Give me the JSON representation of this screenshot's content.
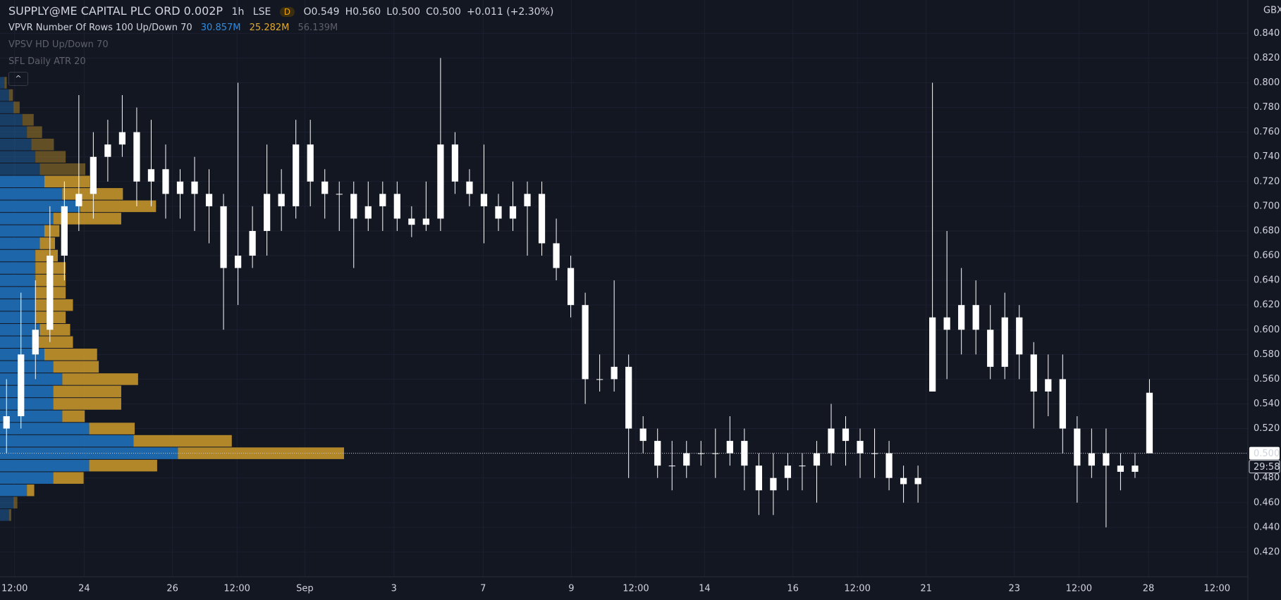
{
  "chart_data": {
    "type": "candlestick",
    "title": "SUPPLY@ME CAPITAL PLC ORD 0.002P",
    "interval": "1h",
    "exchange": "LSE",
    "badge": "D",
    "ohlc_text": [
      "O0.549",
      "H0.560",
      "L0.500",
      "C0.500",
      "+0.011 (+2.30%)"
    ],
    "indicators": [
      {
        "name": "VPVR Number Of Rows 100 Up/Down 70",
        "values": [
          "30.857M",
          "25.282M",
          "56.139M"
        ]
      },
      {
        "name": "VPSV HD Up/Down 70"
      },
      {
        "name": "SFL Daily ATR 20"
      }
    ],
    "currency": "GBX",
    "current_price": {
      "value": 0.5,
      "label": "0.500"
    },
    "countdown": "29:58",
    "candle_color": "#ffffff",
    "x": [
      0,
      1,
      2,
      3,
      4,
      5,
      6,
      7,
      8,
      9,
      10,
      11,
      12,
      13,
      14,
      15,
      16,
      17,
      18,
      19,
      20,
      21,
      22,
      23,
      24,
      25,
      26,
      27,
      28,
      29,
      30,
      31,
      32,
      33,
      34,
      35,
      36,
      37,
      38,
      39,
      40,
      41,
      42,
      43,
      44,
      45,
      46,
      47,
      48,
      49,
      50,
      51,
      52,
      53,
      54,
      55,
      56,
      57,
      58,
      59,
      60,
      61,
      62,
      63,
      64,
      65,
      66,
      67,
      68,
      69,
      70,
      71,
      72,
      73,
      74,
      75,
      76,
      77,
      78,
      79
    ],
    "candles": [
      [
        0.52,
        0.56,
        0.5,
        0.53
      ],
      [
        0.53,
        0.63,
        0.52,
        0.58
      ],
      [
        0.58,
        0.64,
        0.56,
        0.6
      ],
      [
        0.6,
        0.7,
        0.59,
        0.66
      ],
      [
        0.66,
        0.72,
        0.64,
        0.7
      ],
      [
        0.7,
        0.79,
        0.68,
        0.71
      ],
      [
        0.71,
        0.76,
        0.69,
        0.74
      ],
      [
        0.74,
        0.77,
        0.72,
        0.75
      ],
      [
        0.75,
        0.79,
        0.74,
        0.76
      ],
      [
        0.76,
        0.78,
        0.7,
        0.72
      ],
      [
        0.72,
        0.77,
        0.7,
        0.73
      ],
      [
        0.73,
        0.75,
        0.69,
        0.71
      ],
      [
        0.71,
        0.73,
        0.69,
        0.72
      ],
      [
        0.72,
        0.74,
        0.68,
        0.71
      ],
      [
        0.71,
        0.73,
        0.67,
        0.7
      ],
      [
        0.7,
        0.71,
        0.6,
        0.65
      ],
      [
        0.65,
        0.8,
        0.62,
        0.66
      ],
      [
        0.66,
        0.7,
        0.65,
        0.68
      ],
      [
        0.68,
        0.75,
        0.66,
        0.71
      ],
      [
        0.71,
        0.73,
        0.68,
        0.7
      ],
      [
        0.7,
        0.77,
        0.69,
        0.75
      ],
      [
        0.75,
        0.77,
        0.7,
        0.72
      ],
      [
        0.72,
        0.73,
        0.69,
        0.71
      ],
      [
        0.71,
        0.72,
        0.68,
        0.71
      ],
      [
        0.71,
        0.72,
        0.65,
        0.69
      ],
      [
        0.69,
        0.72,
        0.68,
        0.7
      ],
      [
        0.7,
        0.72,
        0.68,
        0.71
      ],
      [
        0.71,
        0.72,
        0.68,
        0.69
      ],
      [
        0.69,
        0.7,
        0.675,
        0.685
      ],
      [
        0.685,
        0.72,
        0.68,
        0.69
      ],
      [
        0.69,
        0.82,
        0.68,
        0.75
      ],
      [
        0.75,
        0.76,
        0.71,
        0.72
      ],
      [
        0.72,
        0.73,
        0.7,
        0.71
      ],
      [
        0.71,
        0.75,
        0.67,
        0.7
      ],
      [
        0.7,
        0.71,
        0.68,
        0.69
      ],
      [
        0.69,
        0.72,
        0.68,
        0.7
      ],
      [
        0.7,
        0.72,
        0.66,
        0.71
      ],
      [
        0.71,
        0.72,
        0.66,
        0.67
      ],
      [
        0.67,
        0.69,
        0.64,
        0.65
      ],
      [
        0.65,
        0.66,
        0.61,
        0.62
      ],
      [
        0.62,
        0.63,
        0.54,
        0.56
      ],
      [
        0.56,
        0.58,
        0.55,
        0.56
      ],
      [
        0.56,
        0.64,
        0.55,
        0.57
      ],
      [
        0.57,
        0.58,
        0.48,
        0.52
      ],
      [
        0.52,
        0.53,
        0.5,
        0.51
      ],
      [
        0.51,
        0.52,
        0.48,
        0.49
      ],
      [
        0.49,
        0.51,
        0.47,
        0.49
      ],
      [
        0.49,
        0.51,
        0.48,
        0.5
      ],
      [
        0.5,
        0.51,
        0.49,
        0.5
      ],
      [
        0.5,
        0.52,
        0.48,
        0.5
      ],
      [
        0.5,
        0.53,
        0.49,
        0.51
      ],
      [
        0.51,
        0.52,
        0.47,
        0.49
      ],
      [
        0.49,
        0.5,
        0.45,
        0.47
      ],
      [
        0.47,
        0.5,
        0.45,
        0.48
      ],
      [
        0.48,
        0.5,
        0.47,
        0.49
      ],
      [
        0.49,
        0.5,
        0.47,
        0.49
      ],
      [
        0.49,
        0.51,
        0.46,
        0.5
      ],
      [
        0.5,
        0.54,
        0.49,
        0.52
      ],
      [
        0.52,
        0.53,
        0.49,
        0.51
      ],
      [
        0.51,
        0.52,
        0.48,
        0.5
      ],
      [
        0.5,
        0.52,
        0.48,
        0.5
      ],
      [
        0.5,
        0.51,
        0.47,
        0.48
      ],
      [
        0.48,
        0.49,
        0.46,
        0.475
      ],
      [
        0.475,
        0.49,
        0.46,
        0.48
      ],
      [
        0.55,
        0.8,
        0.55,
        0.61
      ],
      [
        0.61,
        0.68,
        0.56,
        0.6
      ],
      [
        0.6,
        0.65,
        0.58,
        0.62
      ],
      [
        0.62,
        0.64,
        0.58,
        0.6
      ],
      [
        0.6,
        0.62,
        0.56,
        0.57
      ],
      [
        0.57,
        0.63,
        0.56,
        0.61
      ],
      [
        0.61,
        0.62,
        0.56,
        0.58
      ],
      [
        0.58,
        0.59,
        0.52,
        0.55
      ],
      [
        0.55,
        0.58,
        0.53,
        0.56
      ],
      [
        0.56,
        0.58,
        0.5,
        0.52
      ],
      [
        0.52,
        0.53,
        0.46,
        0.49
      ],
      [
        0.49,
        0.52,
        0.48,
        0.5
      ],
      [
        0.5,
        0.52,
        0.44,
        0.49
      ],
      [
        0.49,
        0.5,
        0.47,
        0.485
      ],
      [
        0.485,
        0.5,
        0.48,
        0.49
      ],
      [
        0.549,
        0.56,
        0.5,
        0.5
      ]
    ],
    "profile": {
      "prices": [
        0.45,
        0.46,
        0.47,
        0.48,
        0.49,
        0.5,
        0.51,
        0.52,
        0.53,
        0.54,
        0.55,
        0.56,
        0.57,
        0.58,
        0.59,
        0.6,
        0.61,
        0.62,
        0.63,
        0.64,
        0.65,
        0.66,
        0.67,
        0.68,
        0.69,
        0.7,
        0.71,
        0.72,
        0.73,
        0.74,
        0.75,
        0.76,
        0.77,
        0.78,
        0.79,
        0.8
      ],
      "up_color": "#1f6fb8",
      "down_color": "#c4942b",
      "up": [
        0.16,
        0.24,
        0.48,
        0.95,
        1.59,
        3.17,
        2.38,
        1.59,
        1.11,
        0.95,
        0.95,
        1.11,
        0.95,
        0.79,
        0.63,
        0.71,
        0.63,
        0.63,
        0.63,
        0.63,
        0.63,
        0.63,
        0.71,
        0.79,
        0.95,
        1.43,
        1.11,
        0.79,
        0.71,
        0.63,
        0.56,
        0.48,
        0.4,
        0.24,
        0.16,
        0.08
      ],
      "down": [
        0.04,
        0.07,
        0.13,
        0.54,
        1.21,
        2.96,
        1.75,
        0.81,
        0.4,
        1.21,
        1.21,
        1.35,
        0.81,
        0.94,
        0.67,
        0.54,
        0.54,
        0.67,
        0.54,
        0.54,
        0.54,
        0.4,
        0.27,
        0.27,
        1.21,
        1.35,
        1.08,
        0.81,
        0.81,
        0.54,
        0.4,
        0.27,
        0.2,
        0.11,
        0.07,
        0.04
      ]
    },
    "xlim": [
      -0.45,
      85.8
    ],
    "ylim": [
      0.4,
      0.867
    ],
    "yticks": [
      {
        "value": 0.42,
        "label": "0.420"
      },
      {
        "value": 0.44,
        "label": "0.440"
      },
      {
        "value": 0.46,
        "label": "0.460"
      },
      {
        "value": 0.48,
        "label": "0.480"
      },
      {
        "value": 0.5,
        "label": "0.500"
      },
      {
        "value": 0.52,
        "label": "0.520"
      },
      {
        "value": 0.54,
        "label": "0.540"
      },
      {
        "value": 0.56,
        "label": "0.560"
      },
      {
        "value": 0.58,
        "label": "0.580"
      },
      {
        "value": 0.6,
        "label": "0.600"
      },
      {
        "value": 0.62,
        "label": "0.620"
      },
      {
        "value": 0.64,
        "label": "0.640"
      },
      {
        "value": 0.66,
        "label": "0.660"
      },
      {
        "value": 0.68,
        "label": "0.680"
      },
      {
        "value": 0.7,
        "label": "0.700"
      },
      {
        "value": 0.72,
        "label": "0.720"
      },
      {
        "value": 0.74,
        "label": "0.740"
      },
      {
        "value": 0.76,
        "label": "0.760"
      },
      {
        "value": 0.78,
        "label": "0.780"
      },
      {
        "value": 0.8,
        "label": "0.800"
      },
      {
        "value": 0.82,
        "label": "0.820"
      },
      {
        "value": 0.84,
        "label": "0.840"
      }
    ],
    "xticks": [
      {
        "value": 0.56,
        "label": "12:00"
      },
      {
        "value": 5.37,
        "label": "24"
      },
      {
        "value": 11.47,
        "label": "26"
      },
      {
        "value": 15.93,
        "label": "12:00"
      },
      {
        "value": 20.62,
        "label": "Sep"
      },
      {
        "value": 26.78,
        "label": "3"
      },
      {
        "value": 32.94,
        "label": "7"
      },
      {
        "value": 39.04,
        "label": "9"
      },
      {
        "value": 43.5,
        "label": "12:00"
      },
      {
        "value": 48.25,
        "label": "14"
      },
      {
        "value": 54.35,
        "label": "16"
      },
      {
        "value": 58.81,
        "label": "12:00"
      },
      {
        "value": 63.56,
        "label": "21"
      },
      {
        "value": 69.66,
        "label": "23"
      },
      {
        "value": 74.12,
        "label": "12:00"
      },
      {
        "value": 78.93,
        "label": "28"
      },
      {
        "value": 83.67,
        "label": "12:00"
      }
    ],
    "grid": true
  }
}
